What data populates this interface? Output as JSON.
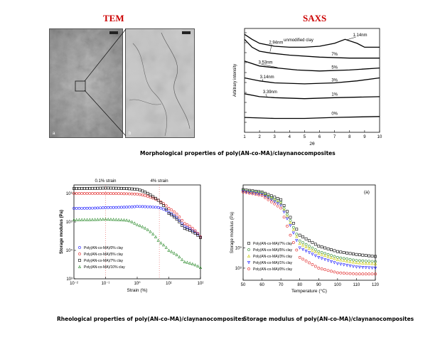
{
  "headings": {
    "tem": "TEM",
    "saxs": "SAXS"
  },
  "captions": {
    "morphological": "Morphological properties of poly(AN-co-MA)/claynanocomposites",
    "rheological": "Rheological properties of poly(AN-co-MA)/claynanocomposites",
    "storage": "Storage modulus of poly(AN-co-MA)/claynanocomposites"
  },
  "tem": {
    "left_corner": "a",
    "right_corner": "b"
  },
  "chart_data": [
    {
      "id": "saxs",
      "type": "line",
      "title": "SAXS",
      "xlabel": "2θ",
      "ylabel": "Arbitrary intensity",
      "xlim": [
        1,
        10
      ],
      "xticks": [
        "1",
        "2",
        "3",
        "4",
        "5",
        "6",
        "7",
        "8",
        "9",
        "10"
      ],
      "series": [
        {
          "name": "unmodified clay",
          "points": [
            [
              1.0,
              9.9
            ],
            [
              1.5,
              9.4
            ],
            [
              2.0,
              9.0
            ],
            [
              3.0,
              8.7
            ],
            [
              4.0,
              8.6
            ],
            [
              5.0,
              8.6
            ],
            [
              6.0,
              8.7
            ],
            [
              7.0,
              9.0
            ],
            [
              7.7,
              9.4
            ],
            [
              8.5,
              9.0
            ],
            [
              9.0,
              8.6
            ],
            [
              10.0,
              8.6
            ]
          ]
        },
        {
          "name": "7%",
          "points": [
            [
              1.0,
              9.4
            ],
            [
              1.5,
              8.6
            ],
            [
              2.0,
              8.2
            ],
            [
              2.8,
              8.0
            ],
            [
              4.0,
              7.8
            ],
            [
              6.0,
              7.6
            ],
            [
              8.0,
              7.5
            ],
            [
              10.0,
              7.5
            ]
          ]
        },
        {
          "name": "5%",
          "points": [
            [
              1.0,
              7.2
            ],
            [
              2.0,
              6.7
            ],
            [
              3.2,
              6.5
            ],
            [
              4.5,
              6.3
            ],
            [
              6.0,
              6.2
            ],
            [
              8.0,
              6.3
            ],
            [
              10.0,
              6.5
            ]
          ]
        },
        {
          "name": "3%",
          "points": [
            [
              1.0,
              5.5
            ],
            [
              2.0,
              5.2
            ],
            [
              3.0,
              5.0
            ],
            [
              5.0,
              4.9
            ],
            [
              7.0,
              5.0
            ],
            [
              8.5,
              5.2
            ],
            [
              10.0,
              5.5
            ]
          ]
        },
        {
          "name": "1%",
          "points": [
            [
              1.0,
              3.9
            ],
            [
              2.0,
              3.6
            ],
            [
              3.0,
              3.5
            ],
            [
              5.0,
              3.4
            ],
            [
              7.0,
              3.5
            ],
            [
              10.0,
              3.6
            ]
          ]
        },
        {
          "name": "0%",
          "points": [
            [
              1.0,
              1.5
            ],
            [
              3.0,
              1.4
            ],
            [
              5.0,
              1.4
            ],
            [
              7.0,
              1.5
            ],
            [
              10.0,
              1.6
            ]
          ]
        }
      ],
      "annotations": [
        "1.14nm",
        "2.94nm",
        "3.53nm",
        "3.14nm",
        "3.39nm",
        "unmodified clay",
        "7%",
        "5%",
        "3%",
        "1%",
        "0%"
      ]
    },
    {
      "id": "rheology",
      "type": "scatter",
      "xlabel": "Strain (%)",
      "ylabel": "Storage modulus (Pa)",
      "xscale": "log",
      "yscale": "log",
      "xlim": [
        0.01,
        100
      ],
      "ylim": [
        1000,
        2000000
      ],
      "xticks": [
        "10⁻²",
        "10⁻¹",
        "10⁰",
        "10¹",
        "10²"
      ],
      "yticks": [
        "10³",
        "10⁴",
        "10⁵",
        "10⁶"
      ],
      "top_labels": [
        "0.1% strain",
        "4% strain"
      ],
      "legend_placement": "bottom-left",
      "series": [
        {
          "name": "Poly(AN-co-MA)/0% clay",
          "color": "#1a1aff",
          "marker": "circle",
          "points": [
            [
              0.01,
              300000
            ],
            [
              0.1,
              320000
            ],
            [
              1,
              350000
            ],
            [
              5,
              320000
            ],
            [
              10,
              220000
            ],
            [
              30,
              70000
            ],
            [
              100,
              30000
            ]
          ]
        },
        {
          "name": "Poly(AN-co-MA)/5% clay",
          "color": "#e02020",
          "marker": "circle",
          "points": [
            [
              0.01,
              1000000
            ],
            [
              0.1,
              1000000
            ],
            [
              1,
              950000
            ],
            [
              3,
              700000
            ],
            [
              10,
              300000
            ],
            [
              30,
              90000
            ],
            [
              100,
              30000
            ]
          ]
        },
        {
          "name": "Poly(AN-co-MA)/7% clay",
          "color": "#000000",
          "marker": "square",
          "points": [
            [
              0.01,
              1500000
            ],
            [
              0.1,
              1550000
            ],
            [
              1,
              1400000
            ],
            [
              3,
              800000
            ],
            [
              10,
              200000
            ],
            [
              30,
              60000
            ],
            [
              100,
              28000
            ]
          ]
        },
        {
          "name": "Poly(AN-co-MA)/10% clay",
          "color": "#2a8a2a",
          "marker": "triangle",
          "points": [
            [
              0.01,
              120000
            ],
            [
              0.1,
              125000
            ],
            [
              0.5,
              115000
            ],
            [
              1,
              80000
            ],
            [
              5,
              20000
            ],
            [
              10,
              10000
            ],
            [
              30,
              4000
            ],
            [
              100,
              2500
            ]
          ]
        }
      ]
    },
    {
      "id": "storage",
      "type": "scatter",
      "annotations": [
        "(a)"
      ],
      "xlabel": "Temperature (°C)",
      "ylabel": "Storage modulus (Pa)",
      "yscale": "log",
      "xlim": [
        50,
        120
      ],
      "ylim": [
        700000000,
        2000000000
      ],
      "xticks": [
        "50",
        "60",
        "70",
        "80",
        "90",
        "100",
        "110",
        "120"
      ],
      "yticks": [
        "10⁹",
        "10⁸"
      ],
      "legend_placement": "bottom-left",
      "series": [
        {
          "name": "Poly(AN-co-MA)/7% clay",
          "color": "#000000",
          "marker": "square",
          "points": [
            [
              50,
              1900000000.0
            ],
            [
              60,
              1850000000.0
            ],
            [
              70,
              1700000000.0
            ],
            [
              75,
              1400000000.0
            ],
            [
              80,
              1150000000.0
            ],
            [
              90,
              1020000000.0
            ],
            [
              100,
              960000000.0
            ],
            [
              110,
              930000000.0
            ],
            [
              120,
              910000000.0
            ]
          ]
        },
        {
          "name": "Poly(AN-co-MA)/5% clay",
          "color": "#2a8a2a",
          "marker": "circle",
          "points": [
            [
              50,
              1880000000.0
            ],
            [
              60,
              1830000000.0
            ],
            [
              70,
              1650000000.0
            ],
            [
              75,
              1350000000.0
            ],
            [
              80,
              1080000000.0
            ],
            [
              90,
              960000000.0
            ],
            [
              100,
              900000000.0
            ],
            [
              110,
              870000000.0
            ],
            [
              120,
              860000000.0
            ]
          ]
        },
        {
          "name": "Poly(AN-co-MA)/3% clay",
          "color": "#c8c800",
          "marker": "triangle",
          "points": [
            [
              50,
              1870000000.0
            ],
            [
              60,
              1820000000.0
            ],
            [
              70,
              1630000000.0
            ],
            [
              75,
              1320000000.0
            ],
            [
              80,
              1050000000.0
            ],
            [
              90,
              940000000.0
            ],
            [
              100,
              880000000.0
            ],
            [
              110,
              850000000.0
            ],
            [
              120,
              840000000.0
            ]
          ]
        },
        {
          "name": "Poly(AN-co-MA)/1% clay",
          "color": "#1a1aff",
          "marker": "triangle-down",
          "points": [
            [
              50,
              1860000000.0
            ],
            [
              60,
              1800000000.0
            ],
            [
              70,
              1600000000.0
            ],
            [
              75,
              1280000000.0
            ],
            [
              80,
              1000000000.0
            ],
            [
              90,
              900000000.0
            ],
            [
              100,
              840000000.0
            ],
            [
              110,
              810000000.0
            ],
            [
              120,
              800000000.0
            ]
          ]
        },
        {
          "name": "Poly(AN-co-MA)/0% clay",
          "color": "#e02020",
          "marker": "circle",
          "points": [
            [
              50,
              1850000000.0
            ],
            [
              60,
              1780000000.0
            ],
            [
              70,
              1550000000.0
            ],
            [
              75,
              1150000000.0
            ],
            [
              80,
              900000000.0
            ],
            [
              90,
              800000000.0
            ],
            [
              100,
              760000000.0
            ],
            [
              110,
              750000000.0
            ],
            [
              120,
              750000000.0
            ]
          ]
        }
      ]
    }
  ]
}
